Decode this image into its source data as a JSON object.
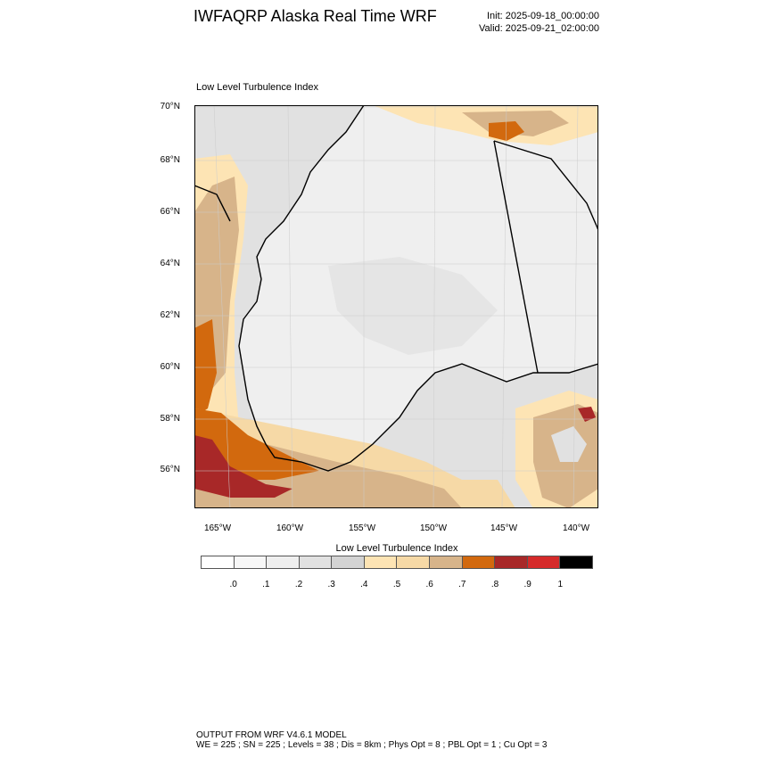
{
  "header": {
    "title": "IWFAQRP Alaska Real Time WRF",
    "init": "Init: 2025-09-18_00:00:00",
    "valid": "Valid: 2025-09-21_02:00:00"
  },
  "map": {
    "title": "Low Level Turbulence Index",
    "lat_labels": [
      "70°N",
      "68°N",
      "66°N",
      "64°N",
      "62°N",
      "60°N",
      "58°N",
      "56°N"
    ],
    "lon_labels": [
      "165°W",
      "160°W",
      "155°W",
      "150°W",
      "145°W",
      "140°W"
    ]
  },
  "colorbar": {
    "title": "Low Level Turbulence Index",
    "colors": [
      "#ffffff",
      "#f7f7f7",
      "#efefef",
      "#e1e1e1",
      "#d3d3d3",
      "#fde4b4",
      "#f6d9a6",
      "#d7b48a",
      "#d2690e",
      "#a82828",
      "#d52a2a",
      "#000000"
    ],
    "labels": [
      ".0",
      ".1",
      ".2",
      ".3",
      ".4",
      ".5",
      ".6",
      ".7",
      ".8",
      ".9",
      "1"
    ]
  },
  "footer": {
    "line1": "OUTPUT FROM WRF V4.6.1 MODEL",
    "line2": "WE = 225 ; SN = 225 ; Levels = 38 ; Dis = 8km ; Phys Opt = 8 ; PBL Opt = 1 ; Cu Opt = 3"
  }
}
